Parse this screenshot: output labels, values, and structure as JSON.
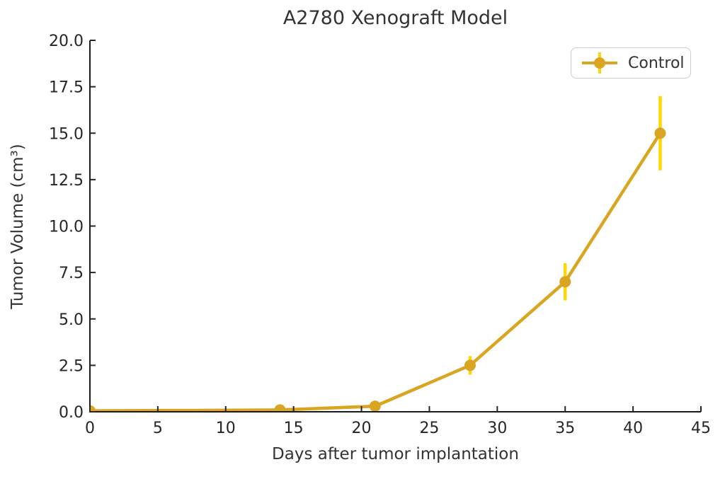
{
  "figure": {
    "background": "#ffffff",
    "text_color": "#333333",
    "spine_color": "#1a1a1a",
    "tick_color": "#262626"
  },
  "chart_data": {
    "type": "line",
    "title": "A2780 Xenograft Model",
    "xlabel": "Days after tumor implantation",
    "ylabel": "Tumor Volume (cm³)",
    "xlim": [
      0,
      45
    ],
    "ylim": [
      0,
      20
    ],
    "xticks": [
      0,
      5,
      10,
      15,
      20,
      25,
      30,
      35,
      40,
      45
    ],
    "yticks": [
      0.0,
      2.5,
      5.0,
      7.5,
      10.0,
      12.5,
      15.0,
      17.5,
      20.0
    ],
    "grid": false,
    "legend_position": "upper right",
    "series": [
      {
        "name": "Control",
        "x": [
          0,
          14,
          21,
          28,
          35,
          42
        ],
        "y": [
          0.05,
          0.1,
          0.3,
          2.5,
          7.0,
          15.0
        ],
        "yerr": [
          0,
          0,
          0,
          0.5,
          1.0,
          2.0
        ],
        "line_color": "#DAA520",
        "error_color": "#FFD700",
        "marker": "circle"
      }
    ]
  },
  "legend": {
    "entries": [
      {
        "label": "Control",
        "line_color": "#DAA520",
        "error_color": "#FFD700"
      }
    ]
  }
}
